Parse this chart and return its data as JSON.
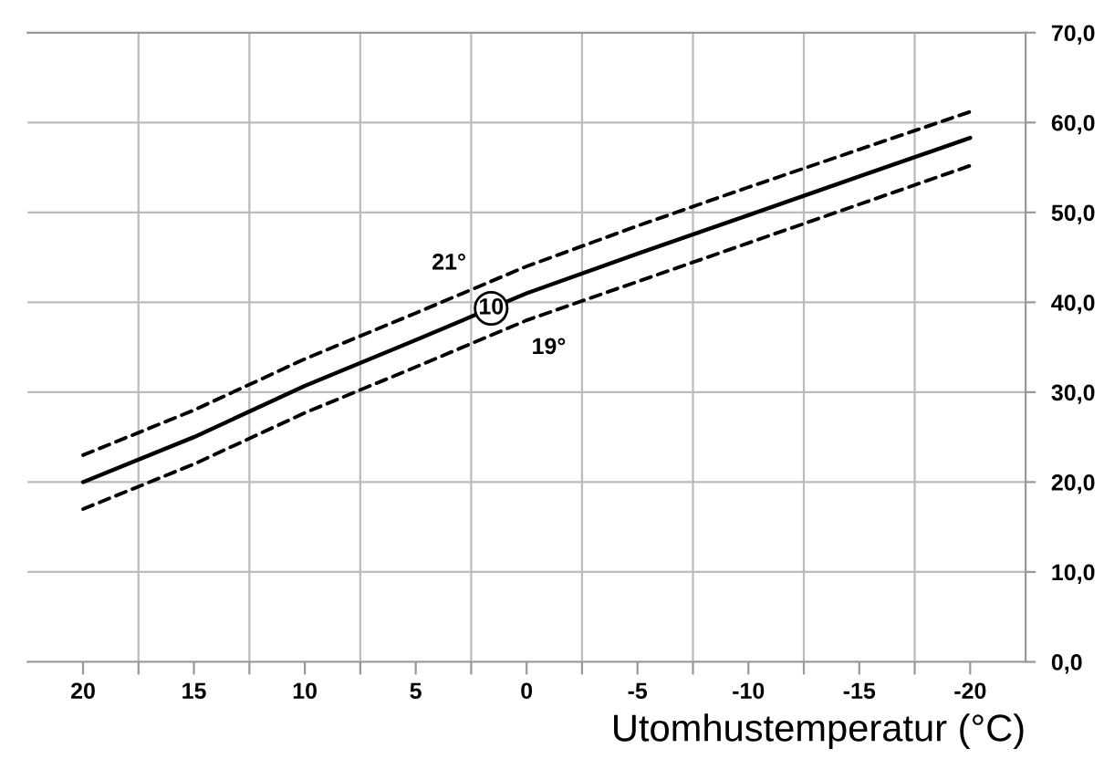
{
  "chart_data": {
    "type": "line",
    "xlabel": "Utomhustemperatur (°C)",
    "x": [
      20,
      15,
      10,
      5,
      0,
      -5,
      -10,
      -15,
      -20
    ],
    "series": [
      {
        "name": "21°",
        "color": "#000000",
        "line_style": "dashed",
        "values": [
          23,
          28,
          33.7,
          38.8,
          44,
          48.5,
          52.8,
          57,
          61.2
        ]
      },
      {
        "name": "10",
        "color": "#000000",
        "line_style": "solid",
        "values": [
          20,
          25,
          30.7,
          35.8,
          41,
          45.4,
          49.7,
          54,
          58.3
        ]
      },
      {
        "name": "19°",
        "color": "#000000",
        "line_style": "dashed",
        "values": [
          17,
          22,
          27.7,
          32.8,
          38,
          42.3,
          46.6,
          50.9,
          55.2
        ]
      }
    ],
    "xlim": [
      22.5,
      -22.5
    ],
    "xticks": [
      -20,
      {
        "value": -17.5,
        "label": null
      },
      -15,
      {
        "value": -12.5,
        "label": null
      },
      -10,
      {
        "value": -7.5,
        "label": null
      },
      -5,
      {
        "value": -2.5,
        "label": null
      },
      0,
      {
        "value": 2.5,
        "label": null
      },
      5,
      {
        "value": 7.5,
        "label": null
      },
      10,
      {
        "value": 12.5,
        "label": null
      },
      15,
      {
        "value": 17.5,
        "label": null
      },
      20
    ],
    "ylim": [
      0,
      70
    ],
    "yticks": [
      {
        "value": 0,
        "label": "0,0"
      },
      {
        "value": 10,
        "label": "10,0"
      },
      {
        "value": 20,
        "label": "20,0"
      },
      {
        "value": 30,
        "label": "30,0"
      },
      {
        "value": 40,
        "label": "40,0"
      },
      {
        "value": 50,
        "label": "50,0"
      },
      {
        "value": 60,
        "label": "60,0"
      },
      {
        "value": 70,
        "label": "70,0"
      }
    ],
    "grid": true,
    "marker": "none"
  }
}
